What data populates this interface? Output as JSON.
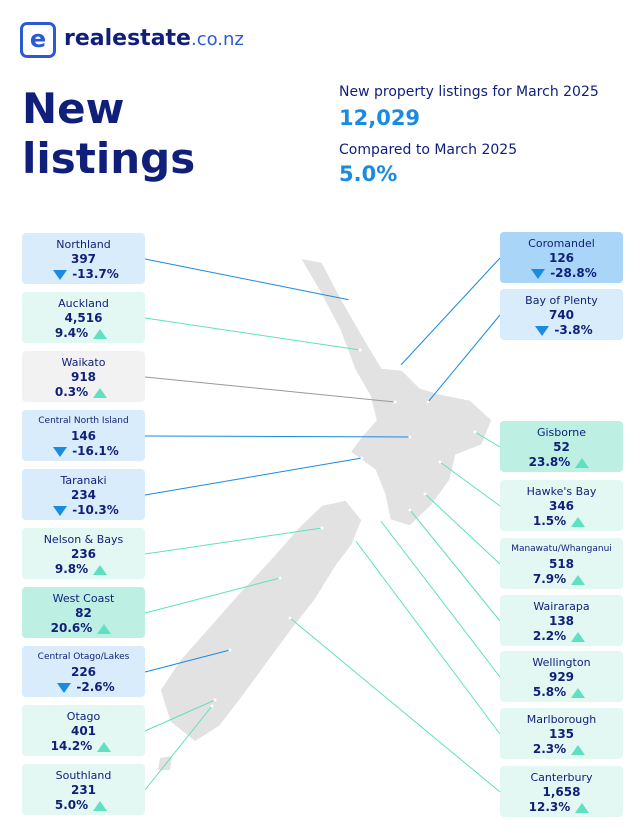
{
  "header": {
    "brand": "realestate",
    "brand_suffix": ".co.nz"
  },
  "title": [
    "New",
    "listings"
  ],
  "summary": {
    "label1": "New property listings for March 2025",
    "value1": "12,029",
    "label2": "Compared to March 2025",
    "value2": "5.0%"
  },
  "regions": [
    {
      "name": "Northland",
      "count": "397",
      "change": "-13.7%",
      "trend": "down",
      "color": "#d9ecfb"
    },
    {
      "name": "Auckland",
      "count": "4,516",
      "change": "9.4%",
      "trend": "up",
      "color": "#e3f8f2"
    },
    {
      "name": "Waikato",
      "count": "918",
      "change": "0.3%",
      "trend": "up",
      "color": "#f2f2f2"
    },
    {
      "name": "Central North Island",
      "count": "146",
      "change": "-16.1%",
      "trend": "down",
      "color": "#d9ecfb"
    },
    {
      "name": "Taranaki",
      "count": "234",
      "change": "-10.3%",
      "trend": "down",
      "color": "#d9ecfb"
    },
    {
      "name": "Nelson & Bays",
      "count": "236",
      "change": "9.8%",
      "trend": "up",
      "color": "#e3f8f2"
    },
    {
      "name": "West Coast",
      "count": "82",
      "change": "20.6%",
      "trend": "up",
      "color": "#bdf0e2"
    },
    {
      "name": "Central Otago/Lakes",
      "count": "226",
      "change": "-2.6%",
      "trend": "down",
      "color": "#d9ecfb"
    },
    {
      "name": "Otago",
      "count": "401",
      "change": "14.2%",
      "trend": "up",
      "color": "#e3f8f2"
    },
    {
      "name": "Southland",
      "count": "231",
      "change": "5.0%",
      "trend": "up",
      "color": "#e3f8f2"
    },
    {
      "name": "Coromandel",
      "count": "126",
      "change": "-28.8%",
      "trend": "down",
      "color": "#a9d6f8"
    },
    {
      "name": "Bay of Plenty",
      "count": "740",
      "change": "-3.8%",
      "trend": "down",
      "color": "#d9ecfb"
    },
    {
      "name": "Gisborne",
      "count": "52",
      "change": "23.8%",
      "trend": "up",
      "color": "#bdf0e2"
    },
    {
      "name": "Hawke's Bay",
      "count": "346",
      "change": "1.5%",
      "trend": "up",
      "color": "#e3f8f2"
    },
    {
      "name": "Manawatu/Whanganui",
      "count": "518",
      "change": "7.9%",
      "trend": "up",
      "color": "#e3f8f2"
    },
    {
      "name": "Wairarapa",
      "count": "138",
      "change": "2.2%",
      "trend": "up",
      "color": "#e3f8f2"
    },
    {
      "name": "Wellington",
      "count": "929",
      "change": "5.8%",
      "trend": "up",
      "color": "#e3f8f2"
    },
    {
      "name": "Marlborough",
      "count": "135",
      "change": "2.3%",
      "trend": "up",
      "color": "#e3f8f2"
    },
    {
      "name": "Canterbury",
      "count": "1,658",
      "change": "12.3%",
      "trend": "up",
      "color": "#e3f8f2"
    }
  ]
}
